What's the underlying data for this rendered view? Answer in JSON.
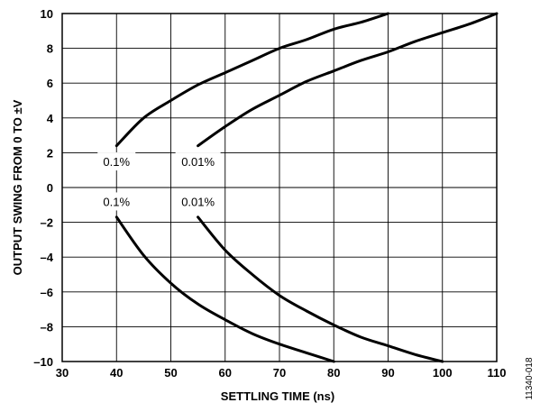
{
  "chart_data": {
    "type": "line",
    "xlabel": "SETTLING TIME (ns)",
    "ylabel": "OUTPUT SWING FROM 0 TO ±V",
    "xlim": [
      30,
      110
    ],
    "ylim": [
      -10,
      10
    ],
    "x_ticks": [
      "30",
      "40",
      "50",
      "60",
      "70",
      "80",
      "90",
      "100",
      "110"
    ],
    "y_ticks": [
      "10",
      "8",
      "6",
      "4",
      "2",
      "0",
      "–2",
      "–4",
      "–6",
      "–8",
      "–10"
    ],
    "grid": true,
    "legend": "none",
    "series": [
      {
        "name": "0.1%",
        "x": [
          40,
          45,
          50,
          55,
          60,
          65,
          70,
          75,
          80,
          85,
          90
        ],
        "y": [
          2.4,
          4.0,
          5.0,
          5.9,
          6.6,
          7.3,
          8.0,
          8.5,
          9.1,
          9.5,
          10.0
        ]
      },
      {
        "name": "0.01%",
        "x": [
          55,
          60,
          65,
          70,
          75,
          80,
          85,
          90,
          95,
          100,
          105,
          110
        ],
        "y": [
          2.4,
          3.5,
          4.5,
          5.3,
          6.1,
          6.7,
          7.3,
          7.8,
          8.4,
          8.9,
          9.4,
          10.0
        ]
      },
      {
        "name": "0.1%",
        "x": [
          40,
          45,
          50,
          55,
          60,
          65,
          70,
          75,
          80
        ],
        "y": [
          -1.7,
          -3.9,
          -5.5,
          -6.7,
          -7.6,
          -8.4,
          -9.0,
          -9.5,
          -10.0
        ]
      },
      {
        "name": "0.01%",
        "x": [
          55,
          60,
          65,
          70,
          75,
          80,
          85,
          90,
          95,
          100
        ],
        "y": [
          -1.7,
          -3.6,
          -5.0,
          -6.2,
          -7.1,
          -7.9,
          -8.6,
          -9.1,
          -9.6,
          -10.0
        ]
      }
    ],
    "labels": [
      {
        "text": "0.1%",
        "x": 40,
        "y": 1.5
      },
      {
        "text": "0.01%",
        "x": 55,
        "y": 1.5
      },
      {
        "text": "0.1%",
        "x": 40,
        "y": -0.8
      },
      {
        "text": "0.01%",
        "x": 55,
        "y": -0.8
      }
    ]
  },
  "figure_id": "11340-018"
}
